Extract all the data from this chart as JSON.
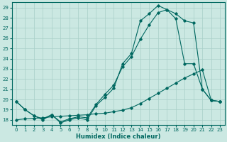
{
  "bg_color": "#cbe8e2",
  "grid_color": "#a8cfc8",
  "line_color": "#006860",
  "xlim": [
    -0.5,
    23.5
  ],
  "ylim": [
    17.5,
    29.5
  ],
  "yticks": [
    18,
    19,
    20,
    21,
    22,
    23,
    24,
    25,
    26,
    27,
    28,
    29
  ],
  "xticks": [
    0,
    1,
    2,
    3,
    4,
    5,
    6,
    7,
    8,
    9,
    10,
    11,
    12,
    13,
    14,
    15,
    16,
    17,
    18,
    19,
    20,
    21,
    22,
    23
  ],
  "xlabel": "Humidex (Indice chaleur)",
  "s1_x": [
    0,
    1,
    2,
    3,
    4,
    5,
    6,
    7,
    8,
    9,
    10,
    11,
    12,
    13,
    14,
    15,
    16,
    17,
    18,
    19,
    20,
    21,
    22,
    23
  ],
  "s1_y": [
    19.8,
    19.0,
    18.4,
    18.0,
    18.5,
    17.7,
    18.0,
    18.2,
    18.0,
    19.4,
    20.2,
    21.1,
    23.5,
    24.5,
    27.7,
    28.4,
    29.2,
    28.8,
    27.9,
    23.5,
    23.5,
    21.0,
    19.9,
    19.8
  ],
  "s2_x": [
    0,
    1,
    2,
    3,
    4,
    5,
    6,
    7,
    8,
    9,
    10,
    11,
    12,
    13,
    14,
    15,
    16,
    17,
    18,
    19,
    20,
    21,
    22,
    23
  ],
  "s2_y": [
    19.8,
    19.0,
    18.4,
    18.1,
    18.5,
    17.8,
    18.1,
    18.3,
    18.2,
    19.5,
    20.5,
    21.4,
    23.2,
    24.2,
    25.9,
    27.3,
    28.5,
    28.8,
    28.4,
    27.7,
    27.5,
    21.0,
    19.9,
    19.8
  ],
  "s3_x": [
    0,
    1,
    2,
    3,
    4,
    5,
    6,
    7,
    8,
    9,
    10,
    11,
    12,
    13,
    14,
    15,
    16,
    17,
    18,
    19,
    20,
    21,
    22,
    23
  ],
  "s3_y": [
    18.0,
    18.1,
    18.15,
    18.2,
    18.3,
    18.35,
    18.4,
    18.45,
    18.5,
    18.6,
    18.65,
    18.8,
    18.95,
    19.2,
    19.6,
    20.1,
    20.6,
    21.1,
    21.6,
    22.1,
    22.5,
    22.9,
    19.9,
    19.8
  ]
}
